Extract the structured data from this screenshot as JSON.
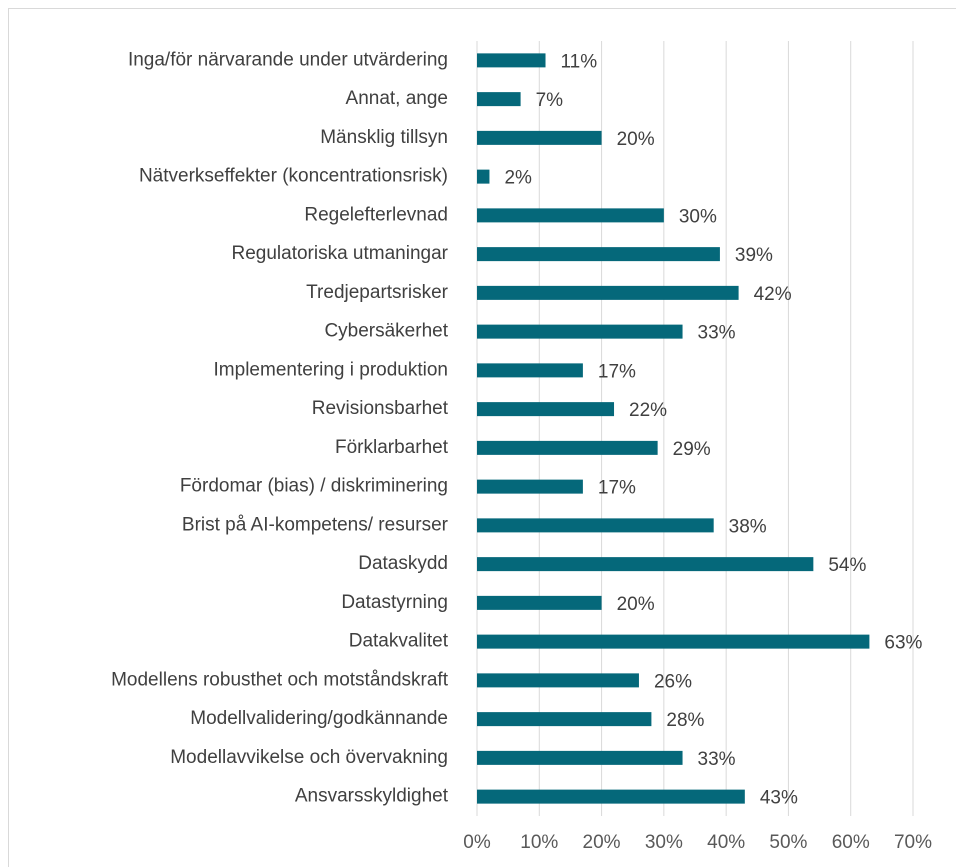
{
  "chart_data": {
    "type": "bar",
    "orientation": "horizontal",
    "categories": [
      "Inga/för närvarande under utvärdering",
      "Annat, ange",
      "Mänsklig tillsyn",
      "Nätverkseffekter (koncentrationsrisk)",
      "Regelefterlevnad",
      "Regulatoriska utmaningar",
      "Tredjepartsrisker",
      "Cybersäkerhet",
      "Implementering i produktion",
      "Revisionsbarhet",
      "Förklarbarhet",
      "Fördomar (bias) / diskriminering",
      "Brist på AI-kompetens/ resurser",
      "Dataskydd",
      "Datastyrning",
      "Datakvalitet",
      "Modellens robusthet och motståndskraft",
      "Modellvalidering/godkännande",
      "Modellavvikelse och övervakning",
      "Ansvarsskyldighet"
    ],
    "values": [
      11,
      7,
      20,
      2,
      30,
      39,
      42,
      33,
      17,
      22,
      29,
      17,
      38,
      54,
      20,
      63,
      26,
      28,
      33,
      43
    ],
    "value_labels": [
      "11%",
      "7%",
      "20%",
      "2%",
      "30%",
      "39%",
      "42%",
      "33%",
      "17%",
      "22%",
      "29%",
      "17%",
      "38%",
      "54%",
      "20%",
      "63%",
      "26%",
      "28%",
      "33%",
      "43%"
    ],
    "color": "#05687a",
    "xlim": [
      0,
      70
    ],
    "xticks": [
      {
        "value": 0,
        "label": "0%"
      },
      {
        "value": 10,
        "label": "10%"
      },
      {
        "value": 20,
        "label": "20%"
      },
      {
        "value": 30,
        "label": "30%"
      },
      {
        "value": 40,
        "label": "40%"
      },
      {
        "value": 50,
        "label": "50%"
      },
      {
        "value": 60,
        "label": "60%"
      },
      {
        "value": 70,
        "label": "70%"
      }
    ],
    "grid": true
  }
}
